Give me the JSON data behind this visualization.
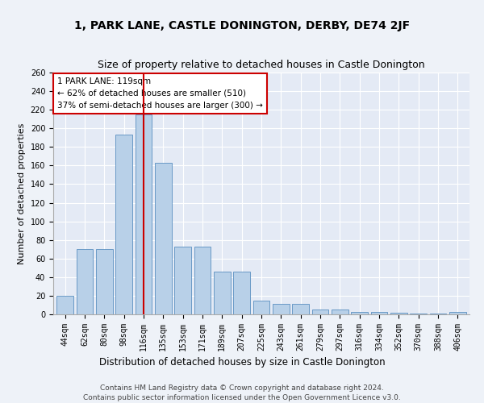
{
  "title": "1, PARK LANE, CASTLE DONINGTON, DERBY, DE74 2JF",
  "subtitle": "Size of property relative to detached houses in Castle Donington",
  "xlabel": "Distribution of detached houses by size in Castle Donington",
  "ylabel": "Number of detached properties",
  "categories": [
    "44sqm",
    "62sqm",
    "80sqm",
    "98sqm",
    "116sqm",
    "135sqm",
    "153sqm",
    "171sqm",
    "189sqm",
    "207sqm",
    "225sqm",
    "243sqm",
    "261sqm",
    "279sqm",
    "297sqm",
    "316sqm",
    "334sqm",
    "352sqm",
    "370sqm",
    "388sqm",
    "406sqm"
  ],
  "values": [
    20,
    70,
    70,
    193,
    215,
    163,
    73,
    73,
    46,
    46,
    15,
    11,
    11,
    5,
    5,
    3,
    3,
    2,
    1,
    1,
    3
  ],
  "bar_color": "#b8d0e8",
  "bar_edge_color": "#5a8fc0",
  "highlight_bar_index": 4,
  "highlight_line_color": "#cc0000",
  "annotation_text": "1 PARK LANE: 119sqm\n← 62% of detached houses are smaller (510)\n37% of semi-detached houses are larger (300) →",
  "annotation_box_color": "#ffffff",
  "annotation_box_edge_color": "#cc0000",
  "ylim": [
    0,
    260
  ],
  "yticks": [
    0,
    20,
    40,
    60,
    80,
    100,
    120,
    140,
    160,
    180,
    200,
    220,
    240,
    260
  ],
  "bg_color": "#eef2f8",
  "plot_bg_color": "#e4eaf5",
  "grid_color": "#ffffff",
  "footer_line1": "Contains HM Land Registry data © Crown copyright and database right 2024.",
  "footer_line2": "Contains public sector information licensed under the Open Government Licence v3.0.",
  "title_fontsize": 10,
  "subtitle_fontsize": 9,
  "xlabel_fontsize": 8.5,
  "ylabel_fontsize": 8,
  "tick_fontsize": 7,
  "footer_fontsize": 6.5,
  "ann_fontsize": 7.5
}
